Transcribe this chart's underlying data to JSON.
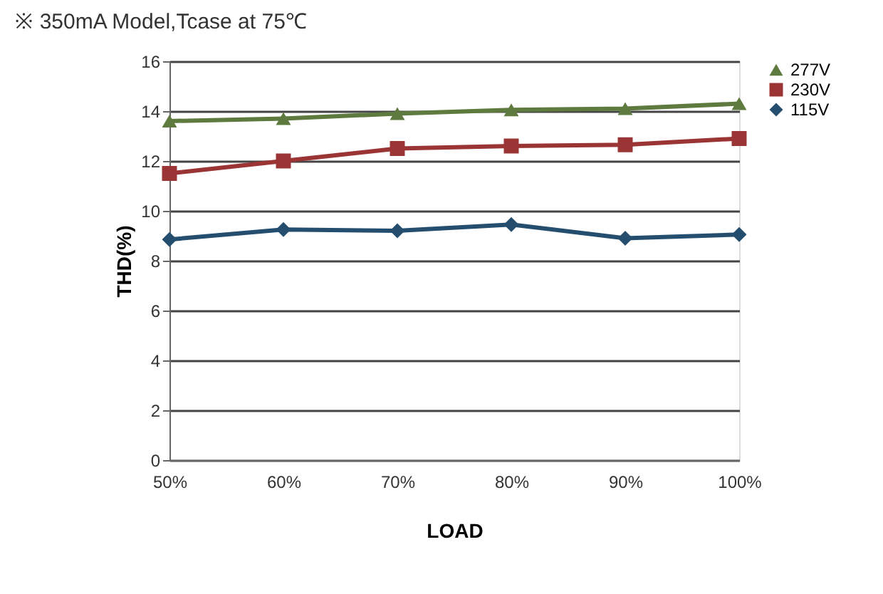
{
  "chart_data": {
    "type": "line",
    "title": "※ 350mA Model,Tcase at 75℃",
    "xlabel": "LOAD",
    "ylabel": "THD(%)",
    "categories": [
      "50%",
      "60%",
      "70%",
      "80%",
      "90%",
      "100%"
    ],
    "series": [
      {
        "name": "277V",
        "color": "#5e7a3e",
        "marker": "triangle",
        "values": [
          13.6,
          13.7,
          13.9,
          14.05,
          14.1,
          14.3
        ]
      },
      {
        "name": "230V",
        "color": "#9b3535",
        "marker": "square",
        "values": [
          11.5,
          12.0,
          12.5,
          12.6,
          12.65,
          12.9
        ]
      },
      {
        "name": "115V",
        "color": "#254e6e",
        "marker": "diamond",
        "values": [
          8.85,
          9.25,
          9.2,
          9.45,
          8.9,
          9.05
        ]
      }
    ],
    "ylim": [
      0,
      16
    ],
    "yticks": [
      0,
      2,
      4,
      6,
      8,
      10,
      12,
      14,
      16
    ],
    "grid": "y",
    "legend": "right",
    "line_style": "solid"
  }
}
